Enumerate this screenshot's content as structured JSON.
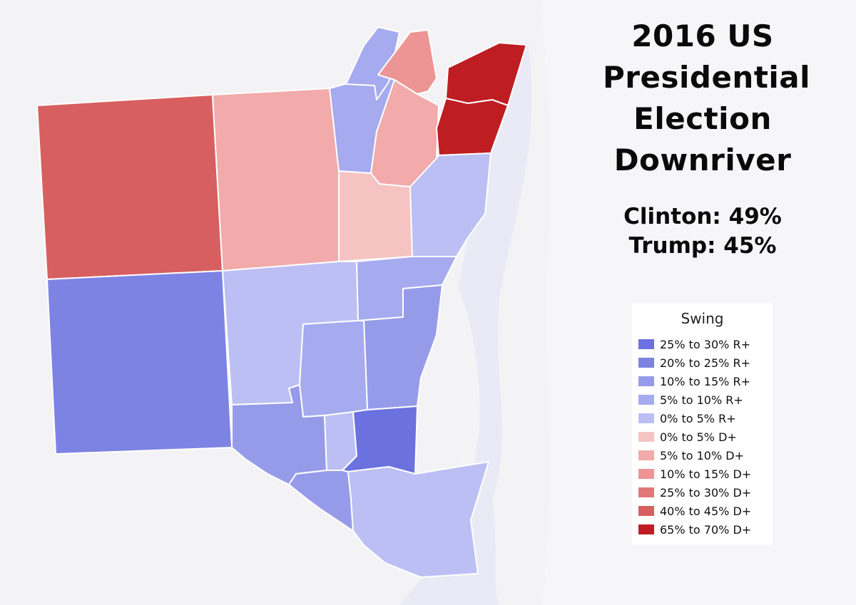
{
  "title": {
    "lines": [
      "2016 US",
      "Presidential",
      "Election",
      "Downriver"
    ]
  },
  "results": {
    "clinton": "Clinton: 49%",
    "trump": "Trump: 45%"
  },
  "legend": {
    "title": "Swing",
    "items": [
      {
        "label": "25% to 30% R+",
        "color": "#6b71de"
      },
      {
        "label": "20% to 25% R+",
        "color": "#7d83e3"
      },
      {
        "label": "10% to 15% R+",
        "color": "#969be9"
      },
      {
        "label": "5% to 10% R+",
        "color": "#a6aaee"
      },
      {
        "label": "0% to 5% R+",
        "color": "#bcbff3"
      },
      {
        "label": "0% to 5% D+",
        "color": "#f6c3c3"
      },
      {
        "label": "5% to 10% D+",
        "color": "#f2aaaa"
      },
      {
        "label": "10% to 15% D+",
        "color": "#ed9494"
      },
      {
        "label": "25% to 30% D+",
        "color": "#e27878"
      },
      {
        "label": "40% to 45% D+",
        "color": "#d85f5f"
      },
      {
        "label": "65% to 70% D+",
        "color": "#be1e22"
      }
    ]
  },
  "map": {
    "regions": [
      {
        "id": "wyandotte-north",
        "swing": "65% to 70% D+"
      },
      {
        "id": "ecorse",
        "swing": "65% to 70% D+"
      },
      {
        "id": "lincoln-park",
        "swing": "10% to 15% D+"
      },
      {
        "id": "melvindale-allen-park",
        "swing": "5% to 10% D+"
      },
      {
        "id": "romulus",
        "swing": "40% to 45% D+"
      },
      {
        "id": "taylor",
        "swing": "5% to 10% D+"
      },
      {
        "id": "southgate",
        "swing": "0% to 5% D+"
      },
      {
        "id": "river-rouge-area",
        "swing": "5% to 10% R+"
      },
      {
        "id": "wyandotte",
        "swing": "0% to 5% R+"
      },
      {
        "id": "huron-township",
        "swing": "20% to 25% R+"
      },
      {
        "id": "brownstown",
        "swing": "0% to 5% R+"
      },
      {
        "id": "riverview",
        "swing": "5% to 10% R+"
      },
      {
        "id": "grosse-ile-shore",
        "swing": "10% to 15% R+"
      },
      {
        "id": "woodhaven",
        "swing": "5% to 10% R+"
      },
      {
        "id": "trenton",
        "swing": "10% to 15% R+"
      },
      {
        "id": "flat-rock",
        "swing": "10% to 15% R+"
      },
      {
        "id": "gibraltar",
        "swing": "0% to 5% R+"
      },
      {
        "id": "rockwood-area",
        "swing": "25% to 30% R+"
      },
      {
        "id": "south-rockwood",
        "swing": "10% to 15% R+"
      },
      {
        "id": "berlin-area",
        "swing": "0% to 5% R+"
      }
    ]
  }
}
